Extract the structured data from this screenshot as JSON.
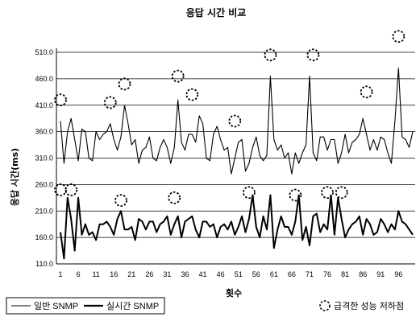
{
  "chart_data": {
    "type": "line",
    "title": "응답 시간 비교",
    "xlabel": "횟수",
    "ylabel": "응답 시간(ms)",
    "ylim": [
      110,
      510
    ],
    "yticks": [
      110,
      160,
      210,
      260,
      310,
      360,
      410,
      460,
      510
    ],
    "ytick_labels": [
      "110.0",
      "160.0",
      "210.0",
      "260.0",
      "310.0",
      "360.0",
      "410.0",
      "460.0",
      "510.0"
    ],
    "xlim": [
      1,
      100
    ],
    "xticks": [
      1,
      6,
      11,
      16,
      21,
      26,
      31,
      36,
      41,
      46,
      51,
      56,
      61,
      66,
      71,
      76,
      81,
      86,
      91,
      96
    ],
    "grid": "horizontal",
    "legend_position": "bottom",
    "legend": {
      "series_labels": [
        "일반 SNMP",
        "실시간 SNMP"
      ],
      "marker_label": "급격한 성능 저하점"
    },
    "series": [
      {
        "name": "일반 SNMP",
        "values": [
          380,
          300,
          360,
          385,
          345,
          305,
          365,
          360,
          310,
          305,
          360,
          345,
          355,
          360,
          375,
          345,
          325,
          350,
          410,
          375,
          335,
          345,
          300,
          325,
          330,
          350,
          310,
          305,
          330,
          345,
          330,
          300,
          330,
          420,
          340,
          325,
          355,
          355,
          340,
          390,
          375,
          310,
          305,
          355,
          370,
          345,
          325,
          330,
          280,
          310,
          340,
          345,
          285,
          300,
          330,
          350,
          315,
          305,
          315,
          465,
          345,
          325,
          335,
          310,
          320,
          280,
          320,
          300,
          320,
          335,
          465,
          320,
          305,
          350,
          350,
          325,
          345,
          345,
          300,
          320,
          355,
          320,
          340,
          345,
          355,
          385,
          355,
          325,
          345,
          325,
          350,
          345,
          320,
          300,
          380,
          480,
          350,
          345,
          330,
          360
        ]
      },
      {
        "name": "실시간 SNMP",
        "values": [
          170,
          120,
          235,
          195,
          135,
          235,
          165,
          185,
          165,
          170,
          155,
          185,
          185,
          190,
          180,
          165,
          195,
          210,
          175,
          175,
          180,
          155,
          195,
          190,
          175,
          190,
          190,
          170,
          185,
          190,
          200,
          165,
          185,
          200,
          160,
          190,
          195,
          200,
          175,
          160,
          190,
          190,
          180,
          185,
          160,
          180,
          185,
          175,
          190,
          165,
          180,
          200,
          170,
          195,
          240,
          180,
          160,
          200,
          175,
          240,
          140,
          175,
          200,
          180,
          180,
          165,
          190,
          240,
          155,
          180,
          145,
          200,
          205,
          170,
          185,
          175,
          240,
          165,
          235,
          195,
          160,
          175,
          185,
          190,
          200,
          165,
          195,
          185,
          165,
          170,
          195,
          185,
          170,
          185,
          175,
          210,
          190,
          185,
          175,
          165
        ]
      }
    ],
    "degradation_points": [
      {
        "x": 1,
        "y": 420
      },
      {
        "x": 15,
        "y": 415
      },
      {
        "x": 19,
        "y": 450
      },
      {
        "x": 34,
        "y": 465
      },
      {
        "x": 38,
        "y": 430
      },
      {
        "x": 50,
        "y": 380
      },
      {
        "x": 60,
        "y": 505
      },
      {
        "x": 72,
        "y": 505
      },
      {
        "x": 87,
        "y": 435
      },
      {
        "x": 96,
        "y": 540
      },
      {
        "x": 1,
        "y": 250
      },
      {
        "x": 4,
        "y": 250
      },
      {
        "x": 18,
        "y": 230
      },
      {
        "x": 33,
        "y": 235
      },
      {
        "x": 54,
        "y": 245
      },
      {
        "x": 67,
        "y": 240
      },
      {
        "x": 76,
        "y": 245
      },
      {
        "x": 80,
        "y": 245
      }
    ]
  }
}
